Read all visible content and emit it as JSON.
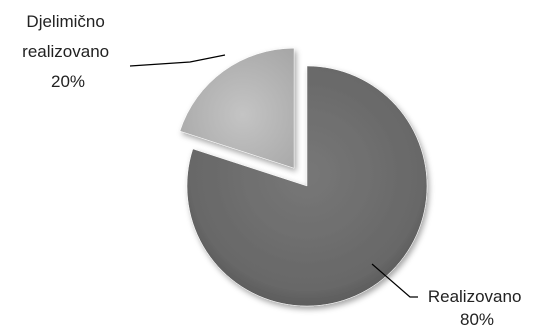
{
  "chart_data": {
    "type": "pie",
    "exploded": true,
    "categories": [
      "Realizovano",
      "Djelimično realizovano"
    ],
    "values": [
      80,
      20
    ],
    "value_labels": [
      "80%",
      "20%"
    ],
    "slice_labels": [
      [
        "Realizovano",
        "80%"
      ],
      [
        "Djelimično",
        "realizovano",
        "20%"
      ]
    ],
    "colors": [
      "#6a6a6a",
      "#b6b6b6"
    ],
    "title": "",
    "legend": "none"
  }
}
